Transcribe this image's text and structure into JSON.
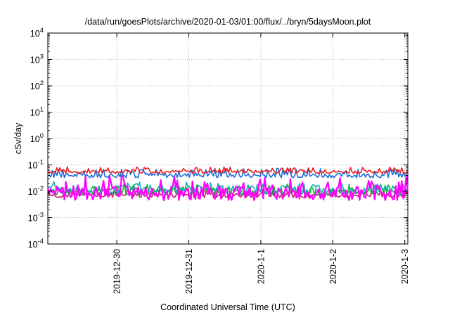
{
  "chart_data": {
    "type": "line",
    "title": "/data/run/goesPlots/archive/2020-01-03/01:00/flux/../bryn/5daysMoon.plot",
    "xlabel": "Coordinated Universal Time (UTC)",
    "ylabel": "cSv/day",
    "yscale": "log",
    "ylim": [
      0.0001,
      10000
    ],
    "y_ticks": [
      {
        "value": 0.0001,
        "base": "10",
        "exp": "-4"
      },
      {
        "value": 0.001,
        "base": "10",
        "exp": "-3"
      },
      {
        "value": 0.01,
        "base": "10",
        "exp": "-2"
      },
      {
        "value": 0.1,
        "base": "10",
        "exp": "-1"
      },
      {
        "value": 1,
        "base": "10",
        "exp": "0"
      },
      {
        "value": 10,
        "base": "10",
        "exp": "1"
      },
      {
        "value": 100,
        "base": "10",
        "exp": "2"
      },
      {
        "value": 1000,
        "base": "10",
        "exp": "3"
      },
      {
        "value": 10000,
        "base": "10",
        "exp": "4"
      }
    ],
    "xlim": [
      "2019-12-29T01:00",
      "2020-01-03T01:00"
    ],
    "x_ticks": [
      {
        "label": "2019-12-30",
        "date": "2019-12-30T00:00"
      },
      {
        "label": "2019-12-31",
        "date": "2019-12-31T00:00"
      },
      {
        "label": "2020-1-1",
        "date": "2020-01-01T00:00"
      },
      {
        "label": "2020-1-2",
        "date": "2020-01-02T00:00"
      },
      {
        "label": "2020-1-3",
        "date": "2020-01-03T00:00"
      }
    ],
    "grid": true,
    "series_colors": [
      "#ee1c1c",
      "#1e6cd8",
      "#12b4a8",
      "#10b030",
      "#c02070",
      "#ff00ff"
    ],
    "series_levels": [
      0.055,
      0.04,
      0.012,
      0.01,
      0.0072,
      0.0085
    ]
  }
}
